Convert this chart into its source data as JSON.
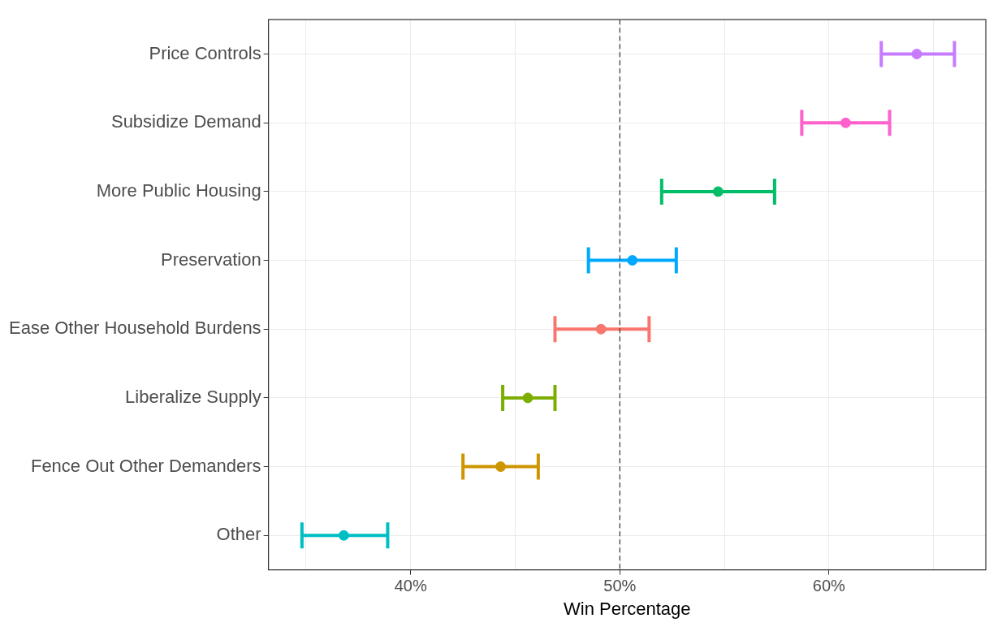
{
  "chart_data": {
    "type": "scatter",
    "orientation": "horizontal",
    "xlabel": "Win Percentage",
    "categories": [
      "Price Controls",
      "Subsidize Demand",
      "More Public Housing",
      "Preservation",
      "Ease Other Household Burdens",
      "Liberalize Supply",
      "Fence Out Other Demanders",
      "Other"
    ],
    "values": [
      64.2,
      60.8,
      54.7,
      50.6,
      49.1,
      45.6,
      44.3,
      36.8
    ],
    "errors": [
      [
        62.5,
        66.0
      ],
      [
        58.7,
        62.9
      ],
      [
        52.0,
        57.4
      ],
      [
        48.5,
        52.7
      ],
      [
        46.9,
        51.4
      ],
      [
        44.4,
        46.9
      ],
      [
        42.5,
        46.1
      ],
      [
        34.8,
        38.9
      ]
    ],
    "colors": [
      "#c77cff",
      "#ff61cc",
      "#00be67",
      "#00a9ff",
      "#f8766d",
      "#7cae00",
      "#cd9600",
      "#00bfc4"
    ],
    "xlim": [
      33.2,
      67.5
    ],
    "xticks": [
      {
        "value": 35,
        "label": null
      },
      {
        "value": 40,
        "label": "40%"
      },
      {
        "value": 45,
        "label": null
      },
      {
        "value": 50,
        "label": "50%"
      },
      {
        "value": 55,
        "label": null
      },
      {
        "value": 60,
        "label": "60%"
      },
      {
        "value": 65,
        "label": null
      }
    ],
    "ref_lines": [
      {
        "axis": "x",
        "value": 50,
        "label": null,
        "color": "#333333",
        "line_style": "dashed"
      }
    ],
    "grid": true,
    "marker": "circle",
    "legend": false
  }
}
